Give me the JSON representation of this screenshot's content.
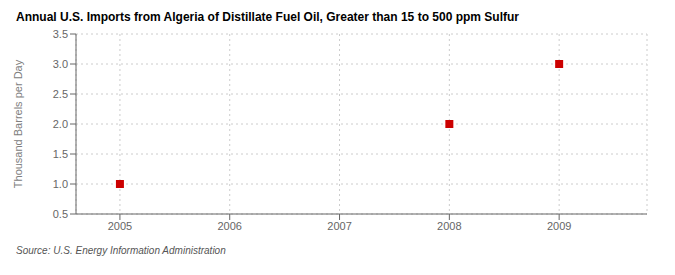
{
  "chart_data": {
    "type": "scatter",
    "title": "Annual U.S. Imports from Algeria of Distillate Fuel Oil, Greater than 15 to 500 ppm Sulfur",
    "ylabel": "Thousand Barrels per Day",
    "annotations": [
      "Source: U.S. Energy Information Administration"
    ],
    "x": [
      2005,
      2008,
      2009
    ],
    "values": [
      1.0,
      2.0,
      3.0
    ],
    "color": "#cc0000",
    "marker": "square",
    "xlim": [
      2004.6,
      2009.8
    ],
    "xticks": [
      2005,
      2006,
      2007,
      2008,
      2009
    ],
    "ylim": [
      0.5,
      3.5
    ],
    "yticks": [
      0.5,
      {
        "value": 1.0,
        "label": "1.0"
      },
      1.5,
      {
        "value": 2.0,
        "label": "2.0"
      },
      2.5,
      {
        "value": 3.0,
        "label": "3.0"
      },
      3.5
    ],
    "grid": true
  }
}
